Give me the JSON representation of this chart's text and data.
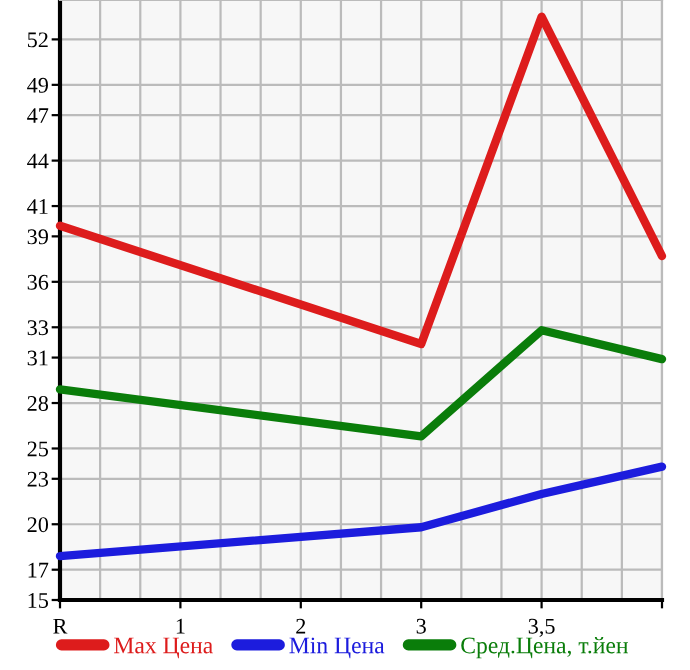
{
  "chart_data": {
    "type": "line",
    "categories": [
      "R",
      "1",
      "2",
      "3",
      "3,5",
      null
    ],
    "series": [
      {
        "name": "Max Цена",
        "color": "#dd1c1c",
        "values": [
          39.7,
          null,
          null,
          31.9,
          53.5,
          37.7
        ]
      },
      {
        "name": "Min Цена",
        "color": "#1c1cdd",
        "values": [
          17.9,
          null,
          null,
          19.8,
          22.0,
          23.8
        ]
      },
      {
        "name": "Сред.Цена, т.йен",
        "color": "#0a7d0a",
        "values": [
          28.9,
          null,
          null,
          25.8,
          32.8,
          30.9
        ]
      }
    ],
    "ylim": [
      15,
      54.6
    ],
    "yticks": [
      15,
      17,
      20,
      23,
      25,
      28,
      31,
      33,
      36,
      39,
      41,
      44,
      47,
      49,
      52
    ],
    "grid": true,
    "legend": "bottom",
    "marker": "none",
    "line_style": "solid"
  }
}
